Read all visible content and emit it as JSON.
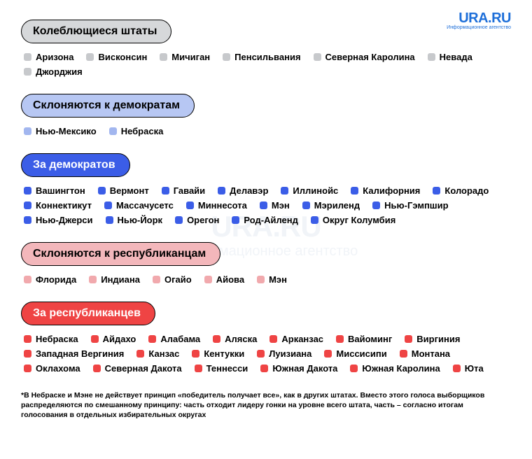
{
  "logo": {
    "main": "URA.RU",
    "sub": "Информационное агентство"
  },
  "watermark": {
    "main": "URA.RU",
    "sub": "Информационное агентство"
  },
  "sections": [
    {
      "title": "Колеблющиеся штаты",
      "header_bg": "#d6d8da",
      "header_color": "#000000",
      "marker_color": "#c7c9cc",
      "items": [
        "Аризона",
        "Висконсин",
        "Мичиган",
        "Пенсильвания",
        "Северная Каролина",
        "Невада",
        "Джорджия"
      ]
    },
    {
      "title": "Склоняются к демократам",
      "header_bg": "#b7c7f3",
      "header_color": "#000000",
      "marker_color": "#a2b6ef",
      "items": [
        "Нью-Мексико",
        "Небраска"
      ]
    },
    {
      "title": "За демократов",
      "header_bg": "#3b5de7",
      "header_color": "#ffffff",
      "marker_color": "#3b5de7",
      "items": [
        "Вашингтон",
        "Вермонт",
        "Гавайи",
        "Делавэр",
        "Иллинойс",
        "Калифорния",
        "Колорадо",
        "Коннектикут",
        "Массачусетс",
        "Миннесота",
        "Мэн",
        "Мэриленд",
        "Нью-Гэмпшир",
        "Нью-Джерси",
        "Нью-Йорк",
        "Орегон",
        "Род-Айленд",
        "Округ Колумбия"
      ]
    },
    {
      "title": "Склоняются к республиканцам",
      "header_bg": "#f3b7bb",
      "header_color": "#000000",
      "marker_color": "#f1a9ad",
      "items": [
        "Флорида",
        "Индиана",
        "Огайо",
        "Айова",
        "Мэн"
      ]
    },
    {
      "title": "За республиканцев",
      "header_bg": "#ef4444",
      "header_color": "#ffffff",
      "marker_color": "#ef4444",
      "items": [
        "Небраска",
        "Айдахо",
        "Алабама",
        "Аляска",
        "Арканзас",
        "Вайоминг",
        "Виргиния",
        "Западная Вергиния",
        "Канзас",
        "Кентукки",
        "Луизиана",
        "Миссисипи",
        "Монтана",
        "Оклахома",
        "Северная Дакота",
        "Теннесси",
        "Южная Дакота",
        "Южная Каролина",
        "Юта"
      ]
    }
  ],
  "footnote": "*В Небраске и Мэне не действует принцип «победитель получает все», как в других штатах. Вместо этого голоса выборщиков распределяются по смешанному принципу: часть отходит лидеру гонки на уровне всего штата, часть – согласно итогам голосования в отдельных избирательных округах"
}
